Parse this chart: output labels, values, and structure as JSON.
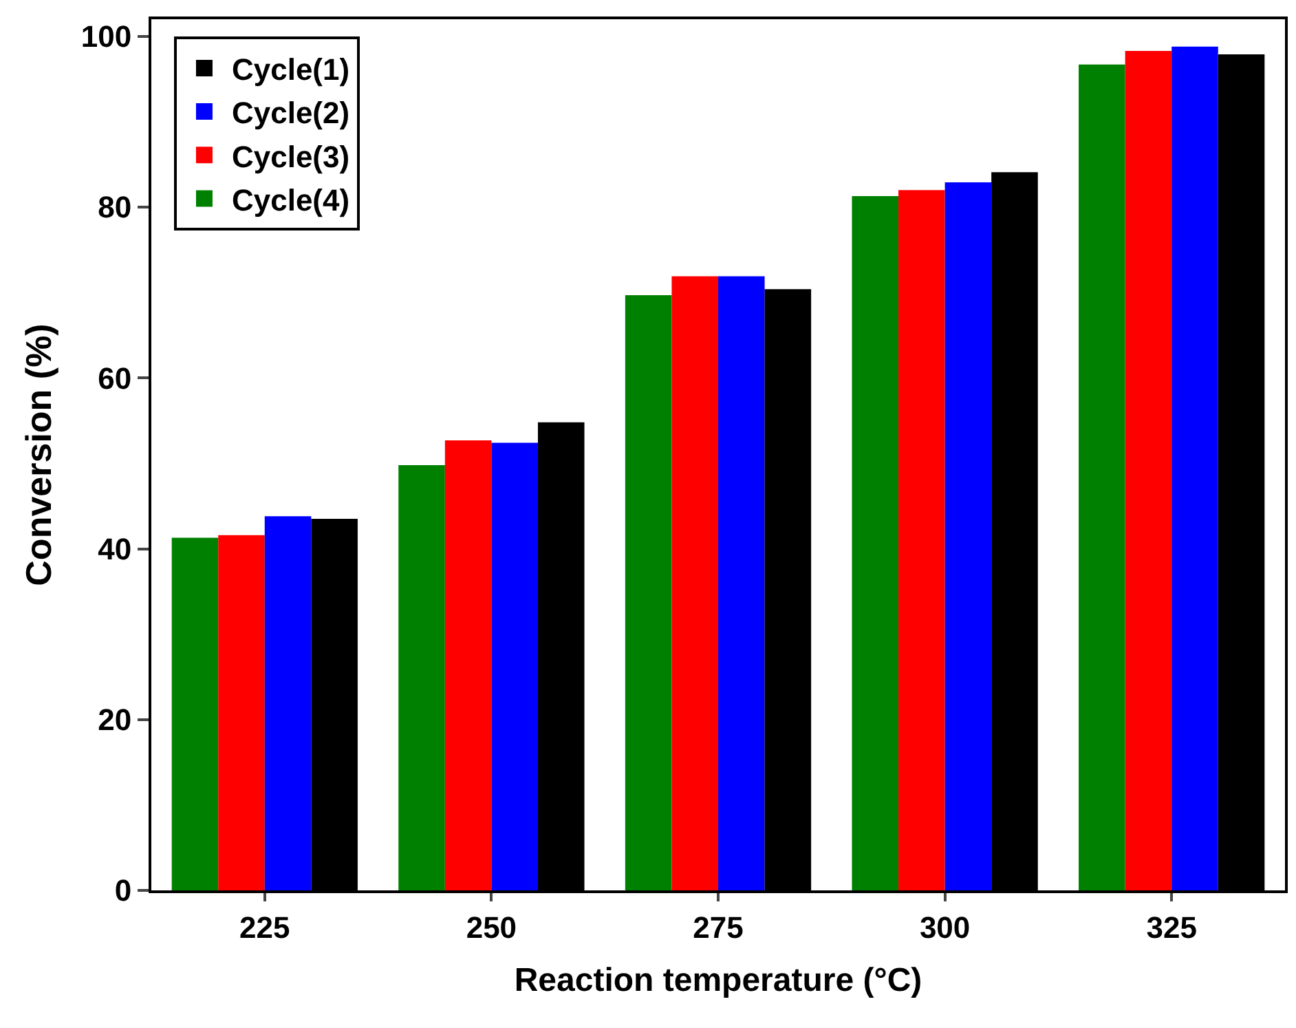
{
  "chart_data": {
    "type": "bar",
    "xlabel": "Reaction temperature (°C)",
    "ylabel": "Conversion (%)",
    "categories": [
      "225",
      "250",
      "275",
      "300",
      "325"
    ],
    "series": [
      {
        "name": "Cycle(4)",
        "color": "#008000",
        "values": [
          41.3,
          49.8,
          69.7,
          81.3,
          96.7
        ]
      },
      {
        "name": "Cycle(3)",
        "color": "#ff0000",
        "values": [
          41.6,
          52.7,
          71.9,
          82.0,
          98.3
        ]
      },
      {
        "name": "Cycle(2)",
        "color": "#0000ff",
        "values": [
          43.8,
          52.4,
          71.9,
          82.9,
          98.8
        ]
      },
      {
        "name": "Cycle(1)",
        "color": "#000000",
        "values": [
          43.5,
          54.8,
          70.4,
          84.1,
          97.9
        ]
      }
    ],
    "ylim": [
      0,
      102
    ],
    "yticks": [
      0,
      20,
      40,
      60,
      80,
      100
    ],
    "grid": false,
    "legend": "top left"
  }
}
